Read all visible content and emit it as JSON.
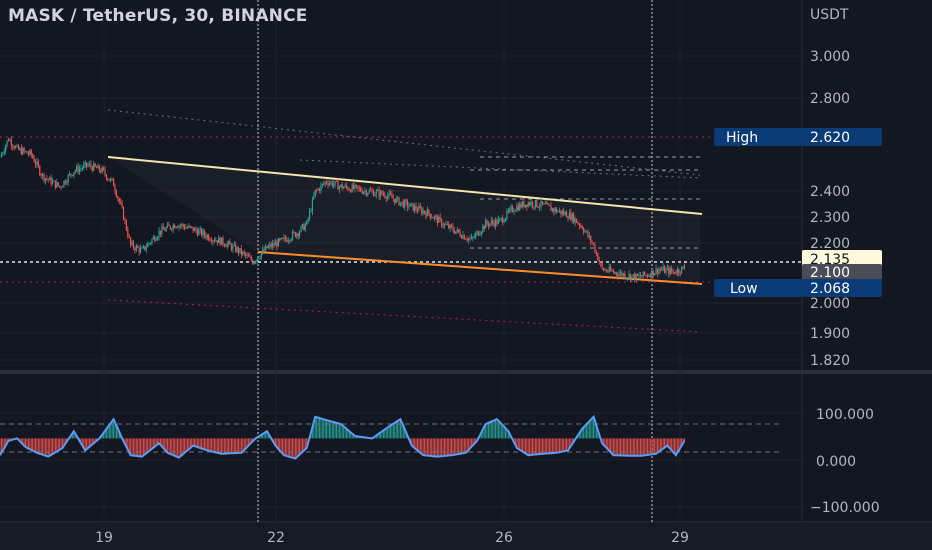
{
  "header": {
    "title": "MASK / TetherUS, 30, BINANCE"
  },
  "price_axis": {
    "currency": "USDT",
    "ticks": [
      "3.000",
      "2.800",
      "2.400",
      "2.300",
      "2.200",
      "2.000",
      "1.900",
      "1.820"
    ]
  },
  "badges": {
    "high_label": "High",
    "high_value": "2.620",
    "current_value": "2.135",
    "level_value": "2.100",
    "low_label": "Low",
    "low_value": "2.068"
  },
  "oscillator_axis": {
    "ticks": [
      "100.000",
      "0.000",
      "−100.000"
    ]
  },
  "time_axis": {
    "ticks": [
      "19",
      "22",
      "26",
      "29"
    ]
  },
  "colors": {
    "bg": "#131722",
    "up": "#26a69a",
    "down": "#ef5350",
    "resistance": "#f3e5ab",
    "support": "#ff8c2b",
    "badge": "#0b3b77"
  },
  "chart_data": {
    "type": "candlestick",
    "price_range": [
      1.76,
      3.14
    ],
    "oscillator_range": [
      -130,
      170
    ],
    "close_samples": [
      [
        0,
        2.55
      ],
      [
        6,
        2.62
      ],
      [
        12,
        2.58
      ],
      [
        22,
        2.56
      ],
      [
        30,
        2.48
      ],
      [
        42,
        2.44
      ],
      [
        52,
        2.5
      ],
      [
        62,
        2.52
      ],
      [
        72,
        2.5
      ],
      [
        80,
        2.45
      ],
      [
        86,
        2.35
      ],
      [
        92,
        2.22
      ],
      [
        100,
        2.2
      ],
      [
        112,
        2.27
      ],
      [
        124,
        2.3
      ],
      [
        136,
        2.28
      ],
      [
        148,
        2.25
      ],
      [
        158,
        2.23
      ],
      [
        168,
        2.2
      ],
      [
        178,
        2.16
      ],
      [
        188,
        2.21
      ],
      [
        200,
        2.24
      ],
      [
        210,
        2.27
      ],
      [
        216,
        2.3
      ],
      [
        222,
        2.42
      ],
      [
        230,
        2.46
      ],
      [
        240,
        2.44
      ],
      [
        252,
        2.43
      ],
      [
        262,
        2.42
      ],
      [
        272,
        2.41
      ],
      [
        282,
        2.38
      ],
      [
        292,
        2.36
      ],
      [
        302,
        2.34
      ],
      [
        312,
        2.3
      ],
      [
        322,
        2.27
      ],
      [
        332,
        2.24
      ],
      [
        342,
        2.3
      ],
      [
        352,
        2.31
      ],
      [
        362,
        2.36
      ],
      [
        372,
        2.38
      ],
      [
        382,
        2.37
      ],
      [
        392,
        2.35
      ],
      [
        402,
        2.33
      ],
      [
        410,
        2.29
      ],
      [
        418,
        2.22
      ],
      [
        424,
        2.13
      ],
      [
        432,
        2.12
      ],
      [
        440,
        2.11
      ],
      [
        448,
        2.1
      ],
      [
        456,
        2.11
      ],
      [
        464,
        2.13
      ],
      [
        474,
        2.12
      ],
      [
        482,
        2.135
      ]
    ],
    "osc_samples": [
      [
        0,
        5
      ],
      [
        6,
        35
      ],
      [
        12,
        40
      ],
      [
        18,
        22
      ],
      [
        26,
        10
      ],
      [
        34,
        2
      ],
      [
        44,
        20
      ],
      [
        52,
        55
      ],
      [
        60,
        15
      ],
      [
        70,
        40
      ],
      [
        80,
        80
      ],
      [
        86,
        40
      ],
      [
        92,
        5
      ],
      [
        100,
        2
      ],
      [
        112,
        30
      ],
      [
        118,
        10
      ],
      [
        126,
        0
      ],
      [
        136,
        25
      ],
      [
        146,
        15
      ],
      [
        156,
        8
      ],
      [
        170,
        10
      ],
      [
        180,
        40
      ],
      [
        188,
        55
      ],
      [
        194,
        25
      ],
      [
        200,
        5
      ],
      [
        208,
        -2
      ],
      [
        216,
        20
      ],
      [
        222,
        85
      ],
      [
        230,
        78
      ],
      [
        240,
        70
      ],
      [
        250,
        45
      ],
      [
        262,
        40
      ],
      [
        274,
        65
      ],
      [
        282,
        80
      ],
      [
        290,
        25
      ],
      [
        298,
        5
      ],
      [
        308,
        2
      ],
      [
        318,
        5
      ],
      [
        328,
        10
      ],
      [
        336,
        35
      ],
      [
        342,
        70
      ],
      [
        350,
        80
      ],
      [
        358,
        55
      ],
      [
        364,
        20
      ],
      [
        372,
        5
      ],
      [
        382,
        8
      ],
      [
        392,
        10
      ],
      [
        400,
        15
      ],
      [
        410,
        60
      ],
      [
        418,
        85
      ],
      [
        424,
        30
      ],
      [
        432,
        5
      ],
      [
        442,
        4
      ],
      [
        452,
        4
      ],
      [
        462,
        8
      ],
      [
        470,
        25
      ],
      [
        476,
        5
      ],
      [
        484,
        45
      ]
    ]
  }
}
